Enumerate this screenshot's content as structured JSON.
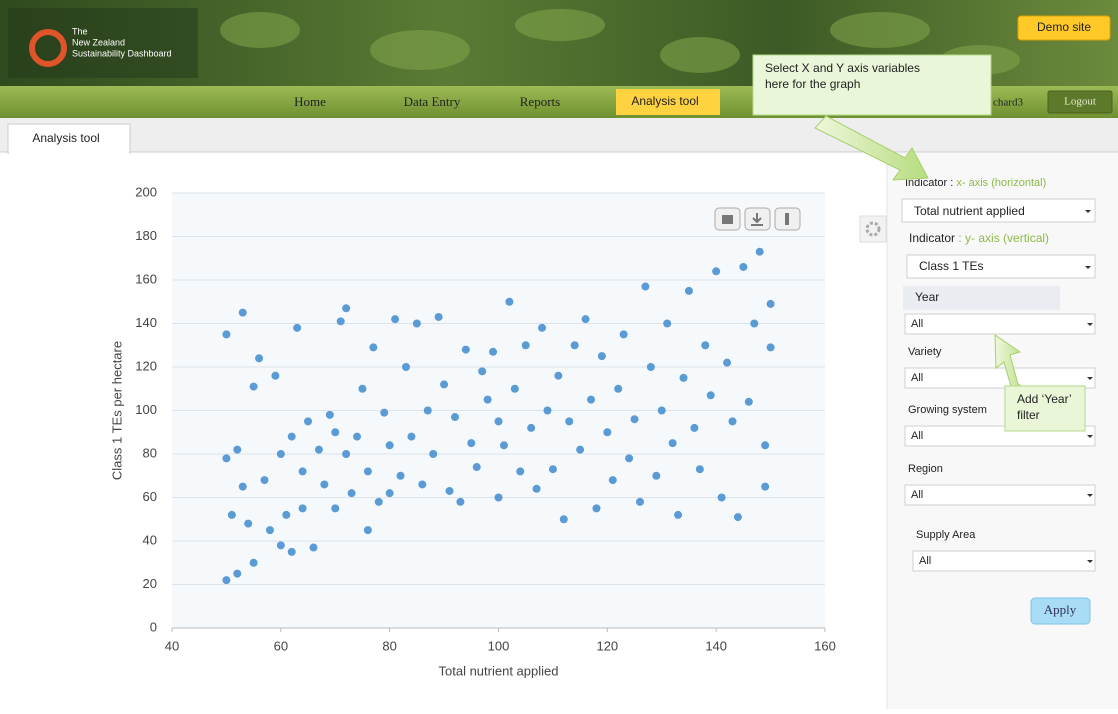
{
  "header": {
    "logo_lines": [
      "The",
      "New Zealand",
      "Sustainability Dashboard"
    ],
    "demo": "Demo site",
    "nav": [
      "Home",
      "Data Entry",
      "Reports",
      "Analysis tool"
    ],
    "user": "chard3",
    "logout": "Logout"
  },
  "tab": "Analysis tool",
  "callouts": {
    "axes": [
      "Select X and Y axis variables",
      "here for the graph"
    ],
    "year": [
      "Add ‘Year’",
      "filter"
    ]
  },
  "panel": {
    "x_label": "Indicator :",
    "x_hint": "x- axis (horizontal)",
    "x_select": "Total nutrient applied",
    "y_label": "Indicator",
    "y_hint": ": y- axis (vertical)",
    "y_select": "Class 1 TEs",
    "filters": [
      {
        "label": "Year",
        "value": "All"
      },
      {
        "label": "Variety",
        "value": "All"
      },
      {
        "label": "Growing system",
        "value": "All"
      },
      {
        "label": "Region",
        "value": "All"
      },
      {
        "label": "Supply Area",
        "value": "All"
      }
    ],
    "apply": "Apply"
  },
  "chart_data": {
    "type": "scatter",
    "x_label": "Total nutrient applied",
    "y_label": "Class 1 TEs per hectare",
    "color": "#5b9bd5",
    "grid": true,
    "xlim": [
      40,
      160
    ],
    "ylim": [
      0,
      200
    ],
    "xticks": [
      40,
      60,
      80,
      100,
      120,
      140,
      160
    ],
    "yticks": [
      0,
      20,
      40,
      60,
      80,
      100,
      120,
      140,
      160,
      180,
      200
    ],
    "x": [
      50,
      50,
      50,
      51,
      52,
      52,
      53,
      53,
      54,
      55,
      55,
      56,
      57,
      58,
      59,
      60,
      60,
      61,
      62,
      62,
      63,
      64,
      64,
      65,
      66,
      67,
      68,
      69,
      70,
      70,
      71,
      72,
      72,
      73,
      74,
      75,
      76,
      76,
      77,
      78,
      79,
      80,
      80,
      81,
      82,
      83,
      84,
      85,
      86,
      87,
      88,
      89,
      90,
      91,
      92,
      93,
      94,
      95,
      96,
      97,
      98,
      99,
      100,
      100,
      101,
      102,
      103,
      104,
      105,
      106,
      107,
      108,
      109,
      110,
      111,
      112,
      113,
      114,
      115,
      116,
      117,
      118,
      119,
      120,
      121,
      122,
      123,
      124,
      125,
      126,
      127,
      128,
      129,
      130,
      131,
      132,
      133,
      134,
      135,
      136,
      137,
      138,
      139,
      140,
      141,
      142,
      143,
      144,
      145,
      146,
      147,
      148,
      149,
      150,
      150,
      149
    ],
    "values": [
      22,
      78,
      135,
      52,
      25,
      82,
      145,
      65,
      48,
      111,
      30,
      124,
      68,
      45,
      116,
      80,
      38,
      52,
      88,
      35,
      138,
      72,
      55,
      95,
      37,
      82,
      66,
      98,
      90,
      55,
      141,
      147,
      80,
      62,
      88,
      110,
      45,
      72,
      129,
      58,
      99,
      84,
      62,
      142,
      70,
      120,
      88,
      140,
      66,
      100,
      80,
      143,
      112,
      63,
      97,
      58,
      128,
      85,
      74,
      118,
      105,
      127,
      60,
      95,
      84,
      150,
      110,
      72,
      130,
      92,
      64,
      138,
      100,
      73,
      116,
      50,
      95,
      130,
      82,
      142,
      105,
      55,
      125,
      90,
      68,
      110,
      135,
      78,
      96,
      58,
      157,
      120,
      70,
      100,
      140,
      85,
      52,
      115,
      155,
      92,
      73,
      130,
      107,
      164,
      60,
      122,
      95,
      51,
      166,
      104,
      140,
      173,
      65,
      149,
      129,
      84
    ]
  }
}
